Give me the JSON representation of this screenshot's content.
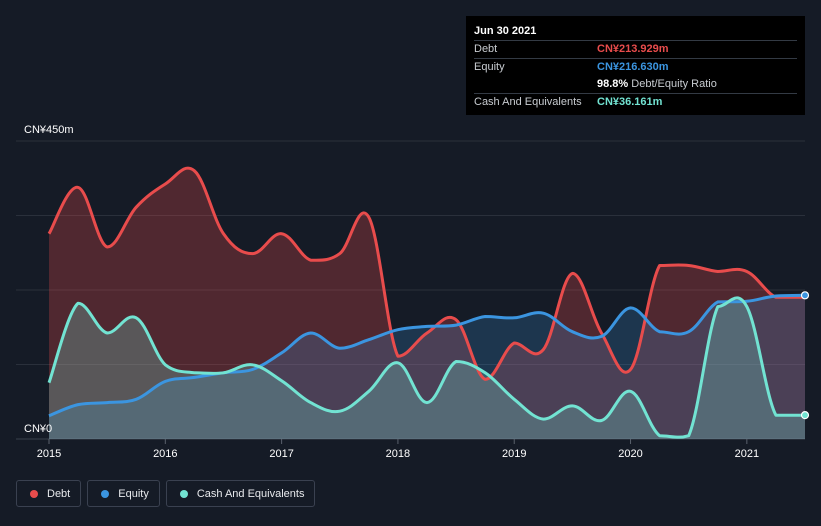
{
  "tooltip": {
    "date": "Jun 30 2021",
    "debt_label": "Debt",
    "debt_value": "CN¥213.929m",
    "equity_label": "Equity",
    "equity_value": "CN¥216.630m",
    "ratio_value": "98.8%",
    "ratio_label": "Debt/Equity Ratio",
    "cash_label": "Cash And Equivalents",
    "cash_value": "CN¥36.161m"
  },
  "legend": {
    "debt": "Debt",
    "equity": "Equity",
    "cash": "Cash And Equivalents"
  },
  "colors": {
    "debt": "#e84c4c",
    "equity": "#3b95e0",
    "cash": "#72e3d2",
    "background": "#151b26"
  },
  "chart_data": {
    "type": "area",
    "title": "",
    "xlabel": "",
    "ylabel": "",
    "ylim": [
      0,
      450
    ],
    "xlim": [
      2015.0,
      2021.5
    ],
    "y_tick_labels": [
      "CN¥0",
      "CN¥450m"
    ],
    "x_tick_labels": [
      "2015",
      "2016",
      "2017",
      "2018",
      "2019",
      "2020",
      "2021"
    ],
    "x_ticks": [
      2015,
      2016,
      2017,
      2018,
      2019,
      2020,
      2021
    ],
    "unit": "CN¥ millions",
    "series": [
      {
        "name": "Debt",
        "x": [
          2015.0,
          2015.25,
          2015.5,
          2015.75,
          2016.0,
          2016.25,
          2016.5,
          2016.75,
          2017.0,
          2017.25,
          2017.5,
          2017.75,
          2018.0,
          2018.25,
          2018.5,
          2018.75,
          2019.0,
          2019.25,
          2019.5,
          2019.75,
          2020.0,
          2020.25,
          2020.5,
          2020.75,
          2021.0,
          2021.25,
          2021.5
        ],
        "values": [
          310,
          380,
          290,
          350,
          385,
          405,
          310,
          280,
          310,
          270,
          280,
          335,
          125,
          160,
          180,
          90,
          145,
          135,
          250,
          160,
          105,
          262,
          262,
          253,
          253,
          214,
          214
        ]
      },
      {
        "name": "Equity",
        "x": [
          2015.0,
          2015.25,
          2015.5,
          2015.75,
          2016.0,
          2016.25,
          2016.5,
          2016.75,
          2017.0,
          2017.25,
          2017.5,
          2017.75,
          2018.0,
          2018.25,
          2018.5,
          2018.75,
          2019.0,
          2019.25,
          2019.5,
          2019.75,
          2020.0,
          2020.25,
          2020.5,
          2020.75,
          2021.0,
          2021.25,
          2021.5
        ],
        "values": [
          35,
          52,
          55,
          60,
          87,
          93,
          100,
          105,
          130,
          160,
          137,
          150,
          165,
          170,
          172,
          185,
          183,
          190,
          162,
          155,
          198,
          162,
          162,
          207,
          208,
          216,
          217
        ]
      },
      {
        "name": "Cash And Equivalents",
        "x": [
          2015.0,
          2015.25,
          2015.5,
          2015.75,
          2016.0,
          2016.25,
          2016.5,
          2016.75,
          2017.0,
          2017.25,
          2017.5,
          2017.75,
          2018.0,
          2018.25,
          2018.5,
          2018.75,
          2019.0,
          2019.25,
          2019.5,
          2019.75,
          2020.0,
          2020.25,
          2020.5,
          2020.75,
          2021.0,
          2021.25,
          2021.5
        ],
        "values": [
          85,
          205,
          160,
          183,
          112,
          100,
          100,
          112,
          88,
          55,
          42,
          72,
          115,
          55,
          117,
          100,
          60,
          30,
          50,
          28,
          72,
          5,
          5,
          200,
          200,
          36,
          36
        ]
      }
    ]
  }
}
